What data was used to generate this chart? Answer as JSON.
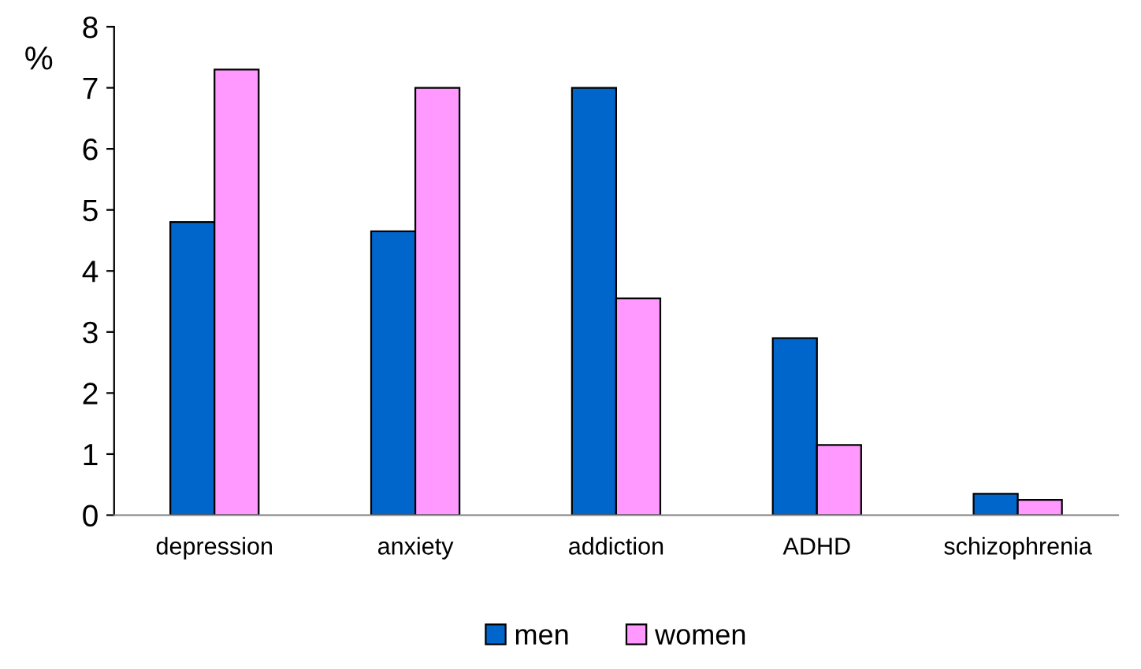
{
  "chart_data": {
    "type": "bar",
    "ylabel": "%",
    "categories": [
      "depression",
      "anxiety",
      "addiction",
      "ADHD",
      "schizophrenia"
    ],
    "series": [
      {
        "name": "men",
        "color": "#0066cc",
        "values": [
          4.8,
          4.65,
          7.0,
          2.9,
          0.35
        ]
      },
      {
        "name": "women",
        "color": "#ff99ff",
        "values": [
          7.3,
          7.0,
          3.55,
          1.15,
          0.25
        ]
      }
    ],
    "ylim": [
      0,
      8
    ],
    "yticks": [
      0,
      1,
      2,
      3,
      4,
      5,
      6,
      7,
      8
    ],
    "grid": false,
    "legend": "bottom"
  }
}
